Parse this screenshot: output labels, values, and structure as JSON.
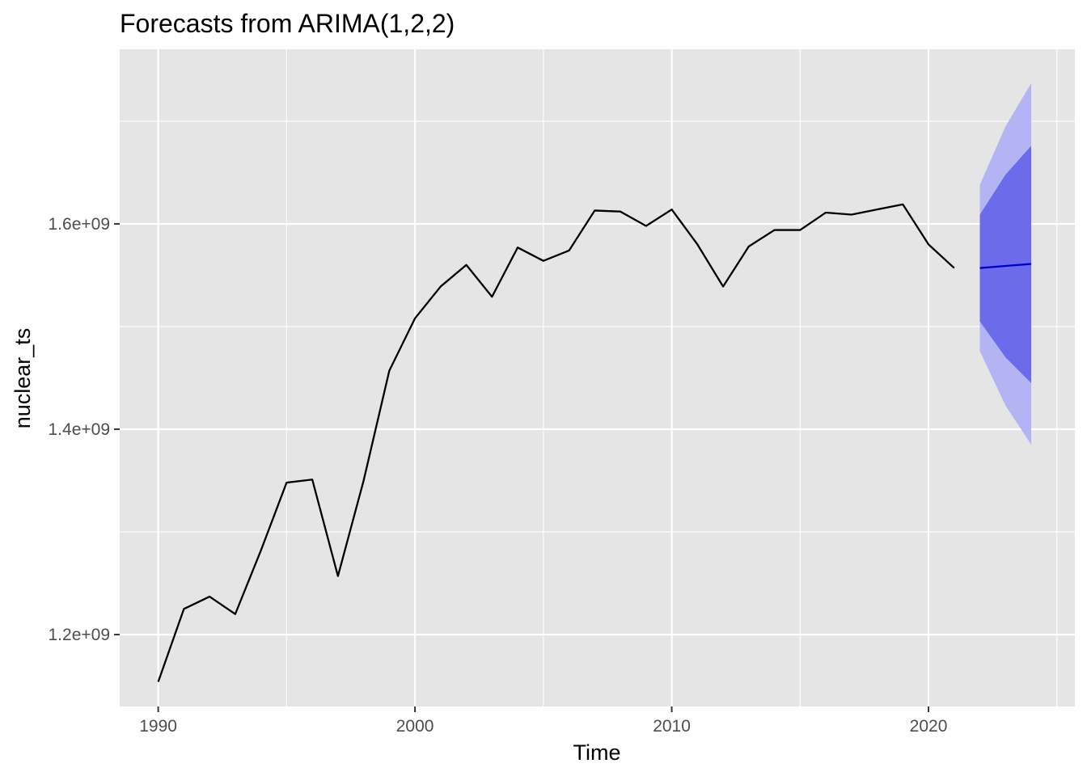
{
  "chart_data": {
    "type": "line",
    "title": "Forecasts from ARIMA(1,2,2)",
    "xlabel": "Time",
    "ylabel": "nuclear_ts",
    "xlim": [
      1988.5,
      2025.7
    ],
    "ylim": [
      1130000000,
      1770000000
    ],
    "x_ticks": [
      1990,
      2000,
      2010,
      2020
    ],
    "x_tick_labels": [
      "1990",
      "2000",
      "2010",
      "2020"
    ],
    "x_minor_ticks": [
      1995,
      2005,
      2015,
      2025
    ],
    "y_ticks": [
      1200000000,
      1400000000,
      1600000000
    ],
    "y_tick_labels": [
      "1.2e+09",
      "1.4e+09",
      "1.6e+09"
    ],
    "y_minor_ticks": [
      1300000000,
      1500000000,
      1700000000
    ],
    "grid": true,
    "legend": "none",
    "series": [
      {
        "role": "observed",
        "color": "#000000",
        "x": [
          1990,
          1991,
          1992,
          1993,
          1994,
          1995,
          1996,
          1997,
          1998,
          1999,
          2000,
          2001,
          2002,
          2003,
          2004,
          2005,
          2006,
          2007,
          2008,
          2009,
          2010,
          2011,
          2012,
          2013,
          2014,
          2015,
          2016,
          2017,
          2018,
          2019,
          2020,
          2021
        ],
        "values": [
          1154000000,
          1225000000,
          1237000000,
          1220000000,
          1282000000,
          1348000000,
          1351000000,
          1257000000,
          1350000000,
          1457000000,
          1508000000,
          1539000000,
          1560000000,
          1529000000,
          1577000000,
          1564000000,
          1574000000,
          1613000000,
          1612000000,
          1598000000,
          1614000000,
          1580000000,
          1539000000,
          1578000000,
          1594000000,
          1594000000,
          1611000000,
          1609000000,
          1614000000,
          1619000000,
          1580000000,
          1557000000
        ]
      },
      {
        "role": "forecast",
        "color": "#0000cc",
        "x": [
          2022,
          2023,
          2024
        ],
        "values": [
          1557000000,
          1559000000,
          1561000000
        ]
      }
    ],
    "intervals": [
      {
        "role": "95%",
        "color": "#b4b4f5",
        "x": [
          2022,
          2023,
          2024
        ],
        "lower": [
          1476000000,
          1423000000,
          1385000000
        ],
        "upper": [
          1638000000,
          1695000000,
          1737000000
        ]
      },
      {
        "role": "80%",
        "color": "#6b6bec",
        "x": [
          2022,
          2023,
          2024
        ],
        "lower": [
          1505000000,
          1470000000,
          1445000000
        ],
        "upper": [
          1609000000,
          1648000000,
          1676000000
        ]
      }
    ]
  }
}
